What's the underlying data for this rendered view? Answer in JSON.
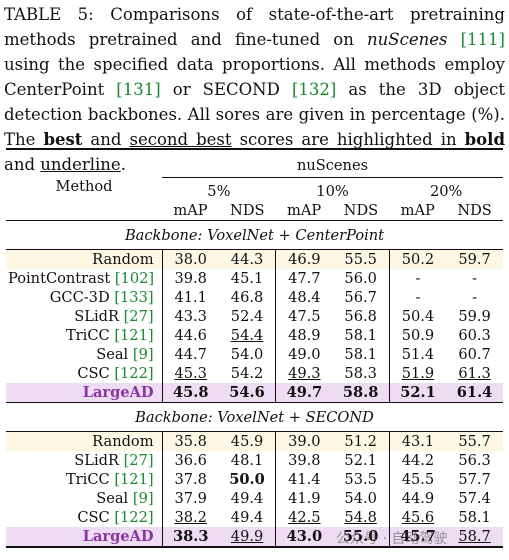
{
  "caption": {
    "lead": "TABLE 5: Comparisons of state-of-the-art pretraining methods pretrained and fine-tuned on ",
    "dataset_italic": "nuScenes",
    "cite_1": "[111]",
    "mid_1": " using the specified data proportions. All methods employ CenterPoint ",
    "cite_2": "[131]",
    "mid_2": " or SECOND ",
    "cite_3": "[132]",
    "mid_3": " as the 3D object detection backbones. All sores are given in percentage (%). The ",
    "best": "best",
    "mid_4": " and ",
    "second_best": "second best",
    "mid_5": " scores are highlighted in ",
    "bold_word": "bold",
    "mid_6": " and ",
    "underline_word": "underline",
    "tail": "."
  },
  "table": {
    "method_header": "Method",
    "dataset_header": "nuScenes",
    "proportions": [
      "5%",
      "10%",
      "20%"
    ],
    "metric_map": "mAP",
    "metric_nds": "NDS",
    "sections": [
      {
        "title": "Backbone: VoxelNet + CenterPoint",
        "rows": [
          {
            "name": "Random",
            "cite": "",
            "v": [
              "38.0",
              "44.3",
              "46.9",
              "55.5",
              "50.2",
              "59.7"
            ],
            "hl": false
          },
          {
            "name": "PointContrast ",
            "cite": "[102]",
            "v": [
              "39.8",
              "45.1",
              "47.7",
              "56.0",
              "-",
              "-"
            ],
            "hl": false
          },
          {
            "name": "GCC-3D ",
            "cite": "[133]",
            "v": [
              "41.1",
              "46.8",
              "48.4",
              "56.7",
              "-",
              "-"
            ],
            "hl": false
          },
          {
            "name": "SLidR ",
            "cite": "[27]",
            "v": [
              "43.3",
              "52.4",
              "47.5",
              "56.8",
              "50.4",
              "59.9"
            ],
            "hl": false
          },
          {
            "name": "TriCC ",
            "cite": "[121]",
            "v": [
              "44.6",
              "54.4",
              "48.9",
              "58.1",
              "50.9",
              "60.3"
            ],
            "hl": false
          },
          {
            "name": "Seal ",
            "cite": "[9]",
            "v": [
              "44.7",
              "54.0",
              "49.0",
              "58.1",
              "51.4",
              "60.7"
            ],
            "hl": false
          },
          {
            "name": "CSC ",
            "cite": "[122]",
            "v": [
              "45.3",
              "54.2",
              "49.3",
              "58.3",
              "51.9",
              "61.3"
            ],
            "hl": false
          },
          {
            "name": "LargeAD",
            "cite": "",
            "v": [
              "45.8",
              "54.6",
              "49.7",
              "58.8",
              "52.1",
              "61.4"
            ],
            "hl": true
          }
        ]
      },
      {
        "title": "Backbone: VoxelNet + SECOND",
        "rows": [
          {
            "name": "Random",
            "cite": "",
            "v": [
              "35.8",
              "45.9",
              "39.0",
              "51.2",
              "43.1",
              "55.7"
            ],
            "hl": false
          },
          {
            "name": "SLidR ",
            "cite": "[27]",
            "v": [
              "36.6",
              "48.1",
              "39.8",
              "52.1",
              "44.2",
              "56.3"
            ],
            "hl": false
          },
          {
            "name": "TriCC ",
            "cite": "[121]",
            "v": [
              "37.8",
              "50.0",
              "41.4",
              "53.5",
              "45.5",
              "57.7"
            ],
            "hl": false
          },
          {
            "name": "Seal ",
            "cite": "[9]",
            "v": [
              "37.9",
              "49.4",
              "41.9",
              "54.0",
              "44.9",
              "57.4"
            ],
            "hl": false
          },
          {
            "name": "CSC ",
            "cite": "[122]",
            "v": [
              "38.2",
              "49.4",
              "42.5",
              "54.8",
              "45.6",
              "58.1"
            ],
            "hl": false
          },
          {
            "name": "LargeAD",
            "cite": "",
            "v": [
              "38.3",
              "49.9",
              "43.0",
              "55.0",
              "45.7",
              "58.7"
            ],
            "hl": true
          }
        ]
      }
    ]
  },
  "watermark": "公众号 · 自动驾驶"
}
